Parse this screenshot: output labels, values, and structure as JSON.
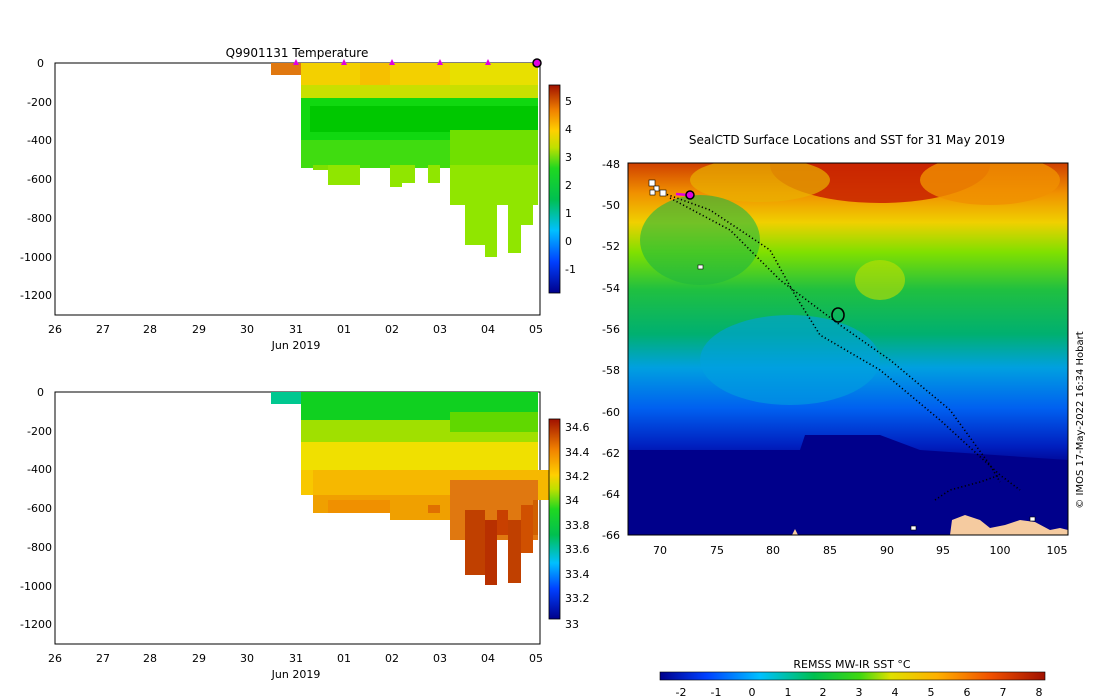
{
  "top_panel": {
    "title": "Q9901131  Temperature",
    "y_ticks": [
      "0",
      "-200",
      "-400",
      "-600",
      "-800",
      "-1000",
      "-1200"
    ],
    "x_ticks": [
      "26",
      "27",
      "28",
      "29",
      "30",
      "31",
      "01",
      "02",
      "03",
      "04",
      "05"
    ],
    "x_label": "Jun 2019",
    "colorbar_ticks": [
      "5",
      "4",
      "3",
      "2",
      "1",
      "0",
      "-1"
    ]
  },
  "bottom_panel": {
    "y_ticks": [
      "0",
      "-200",
      "-400",
      "-600",
      "-800",
      "-1000",
      "-1200"
    ],
    "x_ticks": [
      "26",
      "27",
      "28",
      "29",
      "30",
      "31",
      "01",
      "02",
      "03",
      "04",
      "05"
    ],
    "x_label": "Jun 2019",
    "colorbar_ticks": [
      "34.6",
      "34.4",
      "34.2",
      "34",
      "33.8",
      "33.6",
      "33.4",
      "33.2",
      "33"
    ]
  },
  "map_panel": {
    "title": "SealCTD Surface Locations and SST for 31 May 2019",
    "lat_ticks": [
      "-48",
      "-50",
      "-52",
      "-54",
      "-56",
      "-58",
      "-60",
      "-62",
      "-64",
      "-66"
    ],
    "lon_ticks": [
      "70",
      "75",
      "80",
      "85",
      "90",
      "95",
      "100",
      "105"
    ],
    "credit": "© IMOS 17-May-2022 16:34 Hobart",
    "colorbar_title": "REMSS MW-IR SST °C",
    "colorbar_ticks": [
      "-2",
      "-1",
      "0",
      "1",
      "2",
      "3",
      "4",
      "5",
      "6",
      "7",
      "8"
    ]
  },
  "colors": {
    "deep_blue": "#00008b",
    "land": "#f5cba0",
    "marker": "#e000e0"
  }
}
